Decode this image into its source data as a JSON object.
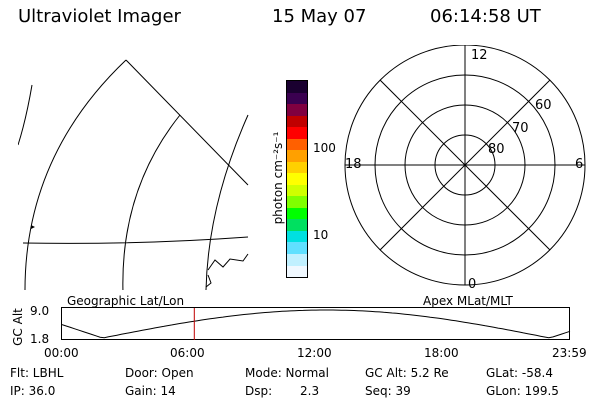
{
  "header": {
    "instrument": "Ultraviolet Imager",
    "date": "15 May 07",
    "time": "06:14:58 UT"
  },
  "colorbar": {
    "label": "photon cm⁻²s⁻¹",
    "ticks": [
      "100",
      "10"
    ],
    "colors": [
      "#1a0030",
      "#3a0050",
      "#800040",
      "#c00000",
      "#ff0000",
      "#ff6000",
      "#ffa000",
      "#ffd000",
      "#ffff00",
      "#d0ff00",
      "#80ff00",
      "#00ff00",
      "#00e060",
      "#00e0e0",
      "#60e0ff",
      "#c0f0ff",
      "#f0f8ff"
    ]
  },
  "polar": {
    "mlt_labels": [
      "12",
      "18",
      "6",
      "0"
    ],
    "mlat_labels": [
      "60",
      "70",
      "80"
    ]
  },
  "map_labels": {
    "left": "Geographic Lat/Lon",
    "right": "Apex MLat/MLT"
  },
  "altitude_plot": {
    "ylabel": "GC Alt",
    "ymax": "9.0",
    "ymin": "1.8",
    "xticks": [
      "00:00",
      "06:00",
      "12:00",
      "18:00",
      "23:59"
    ],
    "current_time_hours": 6.25,
    "series_color": "#000000",
    "marker_color": "#c00000"
  },
  "footer": {
    "flt": "Flt: LBHL",
    "door": "Door: Open",
    "mode": "Mode: Normal",
    "gcalt": "GC Alt: 5.2 Re",
    "glat": "GLat: -58.4",
    "ip": "IP: 36.0",
    "gain": "Gain: 14",
    "dsp_label": "Dsp:",
    "dsp_value": "2.3",
    "seq": "Seq: 39",
    "glon": "GLon: 199.5"
  }
}
